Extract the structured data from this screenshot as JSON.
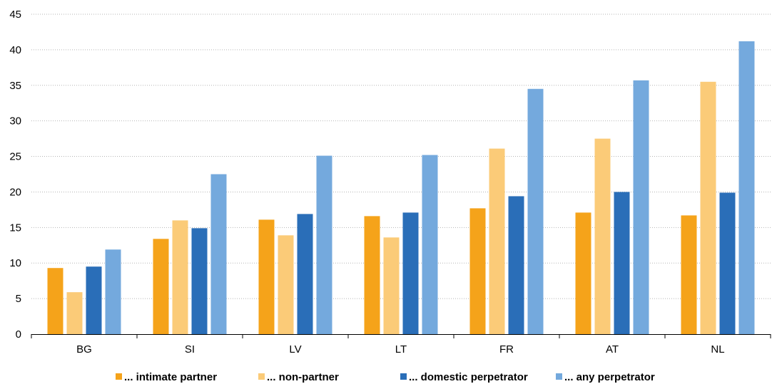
{
  "chart_data": {
    "type": "bar",
    "categories": [
      "BG",
      "SI",
      "LV",
      "LT",
      "FR",
      "AT",
      "NL"
    ],
    "series": [
      {
        "name": "... intimate partner",
        "color": "#F5A31A",
        "values": [
          9.3,
          13.4,
          16.1,
          16.6,
          17.7,
          17.1,
          16.7
        ]
      },
      {
        "name": "... non-partner",
        "color": "#FBCB78",
        "values": [
          5.9,
          16.0,
          13.9,
          13.6,
          26.1,
          27.5,
          35.5
        ]
      },
      {
        "name": "... domestic perpetrator",
        "color": "#2A6EB8",
        "values": [
          9.5,
          14.9,
          16.9,
          17.1,
          19.4,
          20.0,
          19.9
        ]
      },
      {
        "name": "... any perpetrator",
        "color": "#74A9DD",
        "values": [
          11.9,
          22.5,
          25.1,
          25.2,
          34.5,
          35.7,
          41.2
        ]
      }
    ],
    "y_ticks": [
      0,
      5,
      10,
      15,
      20,
      25,
      30,
      35,
      40,
      45
    ],
    "ylim": [
      0,
      45
    ],
    "title": "",
    "xlabel": "",
    "ylabel": "",
    "grid": "horizontal dotted",
    "legend_position": "bottom"
  }
}
